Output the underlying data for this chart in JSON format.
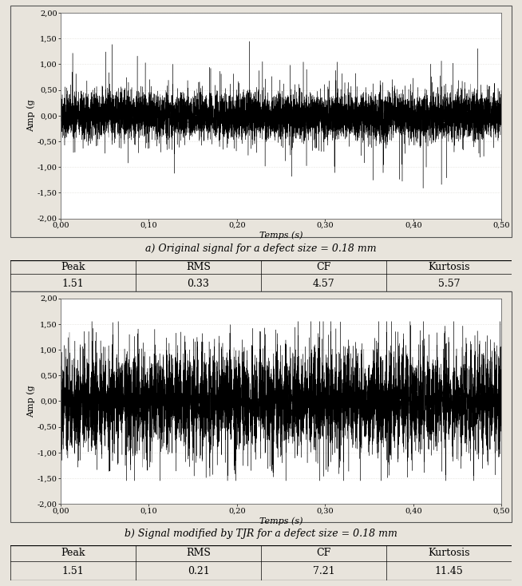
{
  "fig_width": 6.54,
  "fig_height": 7.34,
  "dpi": 100,
  "background_color": "#e8e4dc",
  "plot_bg_color": "#ffffff",
  "signal_color": "#000000",
  "caption_a": "a) Original signal for a defect size = 0.18 mm",
  "caption_b": "b) Signal modified by TJR for a defect size = 0.18 mm",
  "xlabel": "Temps (s)",
  "ylabel": "Amp (g",
  "xlim": [
    0.0,
    0.5
  ],
  "ylim": [
    -2.0,
    2.0
  ],
  "xticks": [
    0.0,
    0.1,
    0.2,
    0.3,
    0.4,
    0.5
  ],
  "xtick_labels": [
    "0,00",
    "0,10",
    "0,20",
    "0,30",
    "0,40",
    "0,50"
  ],
  "yticks": [
    -2.0,
    -1.5,
    -1.0,
    -0.5,
    0.0,
    0.5,
    1.0,
    1.5,
    2.0
  ],
  "ytick_labels": [
    "-2,00",
    "-1,50",
    "-1,00",
    "-0,50",
    "0,00",
    "0,50",
    "1,00",
    "1,50",
    "2,00"
  ],
  "table1_headers": [
    "Peak",
    "RMS",
    "CF",
    "Kurtosis"
  ],
  "table1_values": [
    "1.51",
    "0.33",
    "4.57",
    "5.57"
  ],
  "table2_headers": [
    "Peak",
    "RMS",
    "CF",
    "Kurtosis"
  ],
  "table2_values": [
    "1.51",
    "0.21",
    "7.21",
    "11.45"
  ],
  "n_points": 8000,
  "seed1": 42,
  "seed2": 77,
  "defect_freq": 105.0,
  "signal1_std": 0.22,
  "signal2_std": 0.18,
  "grid_color": "#d0ccc4",
  "border_color": "#888888",
  "table_font_size": 9,
  "caption_font_size": 9,
  "tick_font_size": 7,
  "axis_label_font_size": 8
}
